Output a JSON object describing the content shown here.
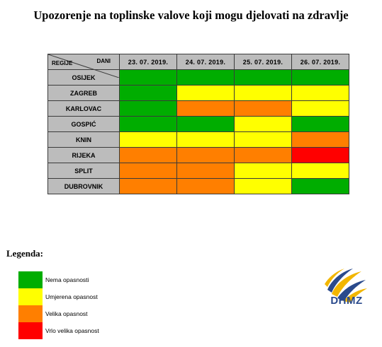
{
  "title": "Upozorenje na toplinske valove koji mogu djelovati na zdravlje",
  "table": {
    "header_dani": "DANI",
    "header_regije": "REGIJE",
    "dates": [
      "23. 07. 2019.",
      "24. 07. 2019.",
      "25. 07. 2019.",
      "26. 07. 2019."
    ],
    "regions": [
      {
        "name": "OSIJEK",
        "levels": [
          0,
          0,
          0,
          0
        ]
      },
      {
        "name": "ZAGREB",
        "levels": [
          0,
          1,
          1,
          1
        ]
      },
      {
        "name": "KARLOVAC",
        "levels": [
          0,
          2,
          2,
          1
        ]
      },
      {
        "name": "GOSPIĆ",
        "levels": [
          0,
          0,
          1,
          0
        ]
      },
      {
        "name": "KNIN",
        "levels": [
          1,
          1,
          1,
          2
        ]
      },
      {
        "name": "RIJEKA",
        "levels": [
          2,
          2,
          2,
          3
        ]
      },
      {
        "name": "SPLIT",
        "levels": [
          2,
          2,
          1,
          1
        ]
      },
      {
        "name": "DUBROVNIK",
        "levels": [
          2,
          2,
          1,
          0
        ]
      }
    ]
  },
  "legend": {
    "title": "Legenda:",
    "items": [
      {
        "label": "Nema opasnosti",
        "color": "#00ad00"
      },
      {
        "label": "Umjerena opasnost",
        "color": "#ffff00"
      },
      {
        "label": "Velika opasnost",
        "color": "#ff7f00"
      },
      {
        "label": "Vrlo velika opasnost",
        "color": "#ff0000"
      }
    ]
  },
  "logo": {
    "text": "DHMZ",
    "icon": "dhmz-logo-icon"
  }
}
